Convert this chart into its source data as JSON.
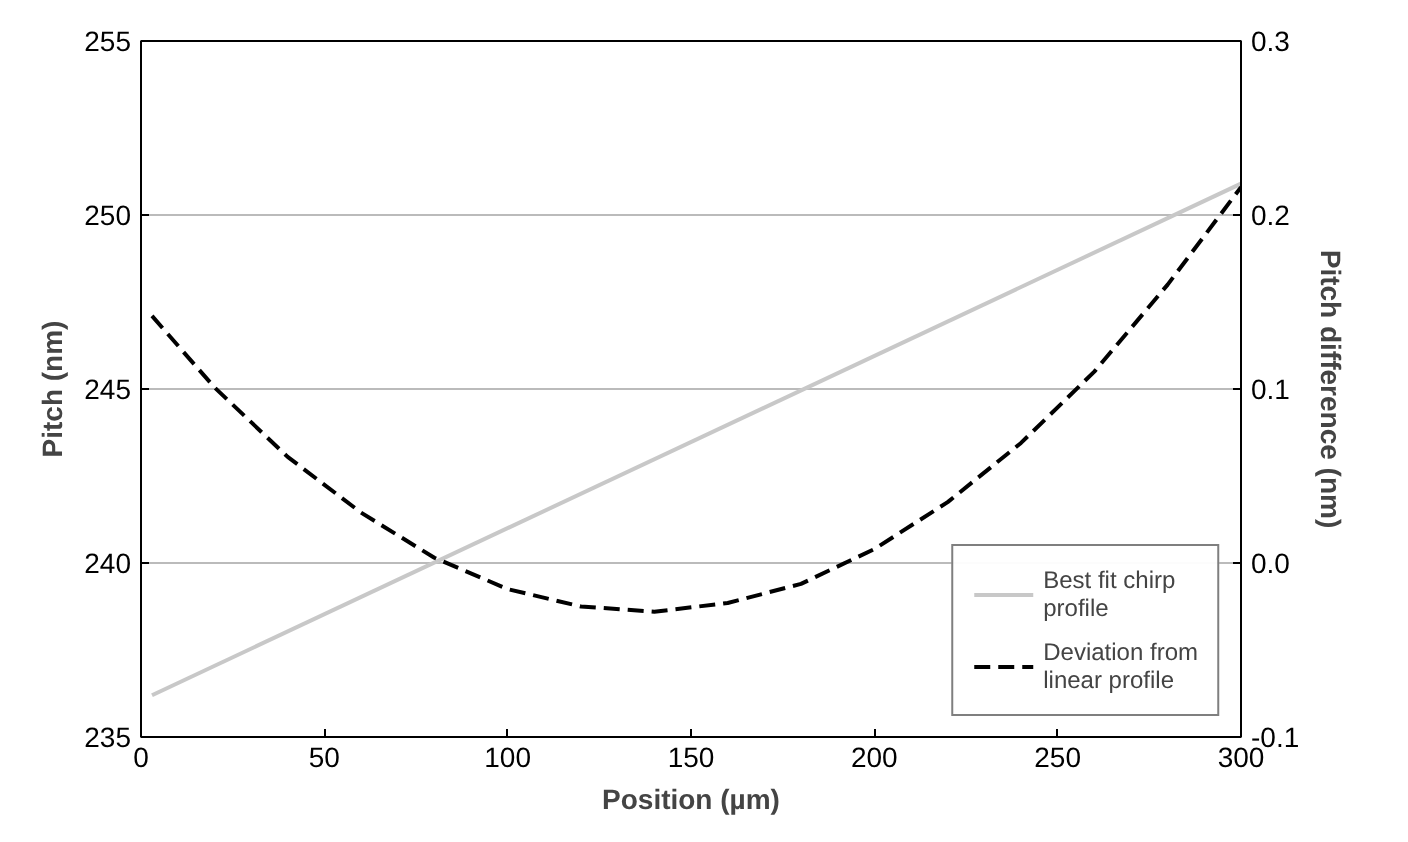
{
  "chart_data": {
    "type": "line",
    "xlabel": "Position (µm)",
    "ylabel": "Pitch (nm)",
    "y2label": "Pitch difference (nm)",
    "xlim": [
      0,
      300
    ],
    "xticks": [
      0,
      50,
      100,
      150,
      200,
      250,
      300
    ],
    "ylim": [
      235,
      255
    ],
    "yticks": [
      235,
      240,
      245,
      250,
      255
    ],
    "y2lim": [
      -0.1,
      0.3
    ],
    "y2ticks": [
      {
        "value": -0.1,
        "label": "-0.1"
      },
      {
        "value": 0,
        "label": "0.0"
      },
      {
        "value": 0.1,
        "label": "0.1"
      },
      {
        "value": 0.2,
        "label": "0.2"
      },
      {
        "value": 0.3,
        "label": "0.3"
      }
    ],
    "grid": "y",
    "legend": "bottom right",
    "series": [
      {
        "name": "Best fit chirp profile",
        "color": "#c8c8c8",
        "line_style": "solid",
        "x": [
          3,
          300
        ],
        "values": [
          236.2,
          250.9
        ]
      },
      {
        "name": "Deviation from linear profile",
        "color": "#000000",
        "line_style": "dashed",
        "axis": "y2",
        "x": [
          3,
          20,
          40,
          60,
          80,
          100,
          120,
          140,
          160,
          180,
          200,
          220,
          240,
          260,
          280,
          300
        ],
        "values": [
          0.142,
          0.101,
          0.061,
          0.029,
          0.003,
          -0.015,
          -0.025,
          -0.028,
          -0.023,
          -0.012,
          0.008,
          0.035,
          0.069,
          0.11,
          0.16,
          0.216
        ]
      }
    ]
  }
}
